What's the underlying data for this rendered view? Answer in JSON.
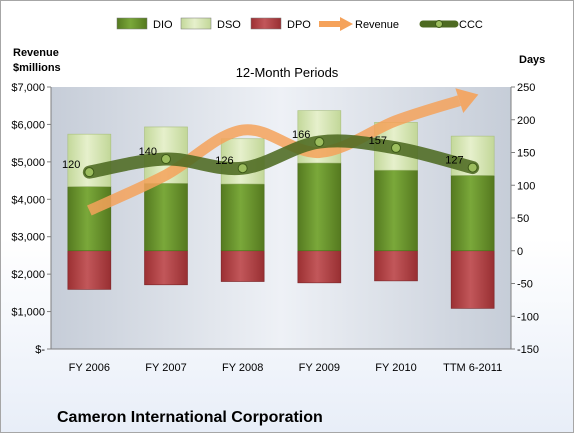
{
  "chart_data": {
    "type": "bar",
    "title": "12-Month Periods",
    "company": "Cameron International Corporation",
    "left_axis_title": [
      "Revenue",
      "$millions"
    ],
    "right_axis_title": "Days",
    "categories": [
      "FY 2006",
      "FY 2007",
      "FY 2008",
      "FY 2009",
      "FY 2010",
      "TTM 6-2011"
    ],
    "left_axis": {
      "range": [
        0,
        7000
      ],
      "tick_labels": [
        "$-",
        "$1,000",
        "$2,000",
        "$3,000",
        "$4,000",
        "$5,000",
        "$6,000",
        "$7,000"
      ]
    },
    "right_axis": {
      "range": [
        -150,
        250
      ],
      "tick_labels": [
        "-150",
        "-100",
        "-50",
        "0",
        "50",
        "100",
        "150",
        "200",
        "250"
      ]
    },
    "series": [
      {
        "name": "DIO",
        "axis": "right",
        "kind": "stacked-bar",
        "color": "#6a962b",
        "values": [
          98,
          103,
          102,
          134,
          123,
          115
        ]
      },
      {
        "name": "DSO",
        "axis": "right",
        "kind": "stacked-bar",
        "color": "#d9e8b4",
        "values": [
          80,
          86,
          69,
          80,
          73,
          60
        ]
      },
      {
        "name": "DPO",
        "axis": "right",
        "kind": "stacked-bar",
        "color": "#b3474a",
        "values": [
          -59,
          -52,
          -47,
          -49,
          -46,
          -88
        ]
      },
      {
        "name": "Revenue",
        "axis": "left",
        "kind": "smooth-arrow-line",
        "color": "#f5a25a",
        "values": [
          3700,
          4650,
          5850,
          5250,
          6100,
          6750
        ]
      },
      {
        "name": "CCC",
        "axis": "right",
        "kind": "smooth-line",
        "color": "#4d6a21",
        "values": [
          120,
          140,
          126,
          166,
          157,
          127
        ]
      }
    ],
    "ccc_labels": [
      "120",
      "140",
      "126",
      "166",
      "157",
      "127"
    ],
    "legend": {
      "position": "top",
      "entries": [
        "DIO",
        "DSO",
        "DPO",
        "Revenue",
        "CCC"
      ]
    },
    "grid": false
  }
}
